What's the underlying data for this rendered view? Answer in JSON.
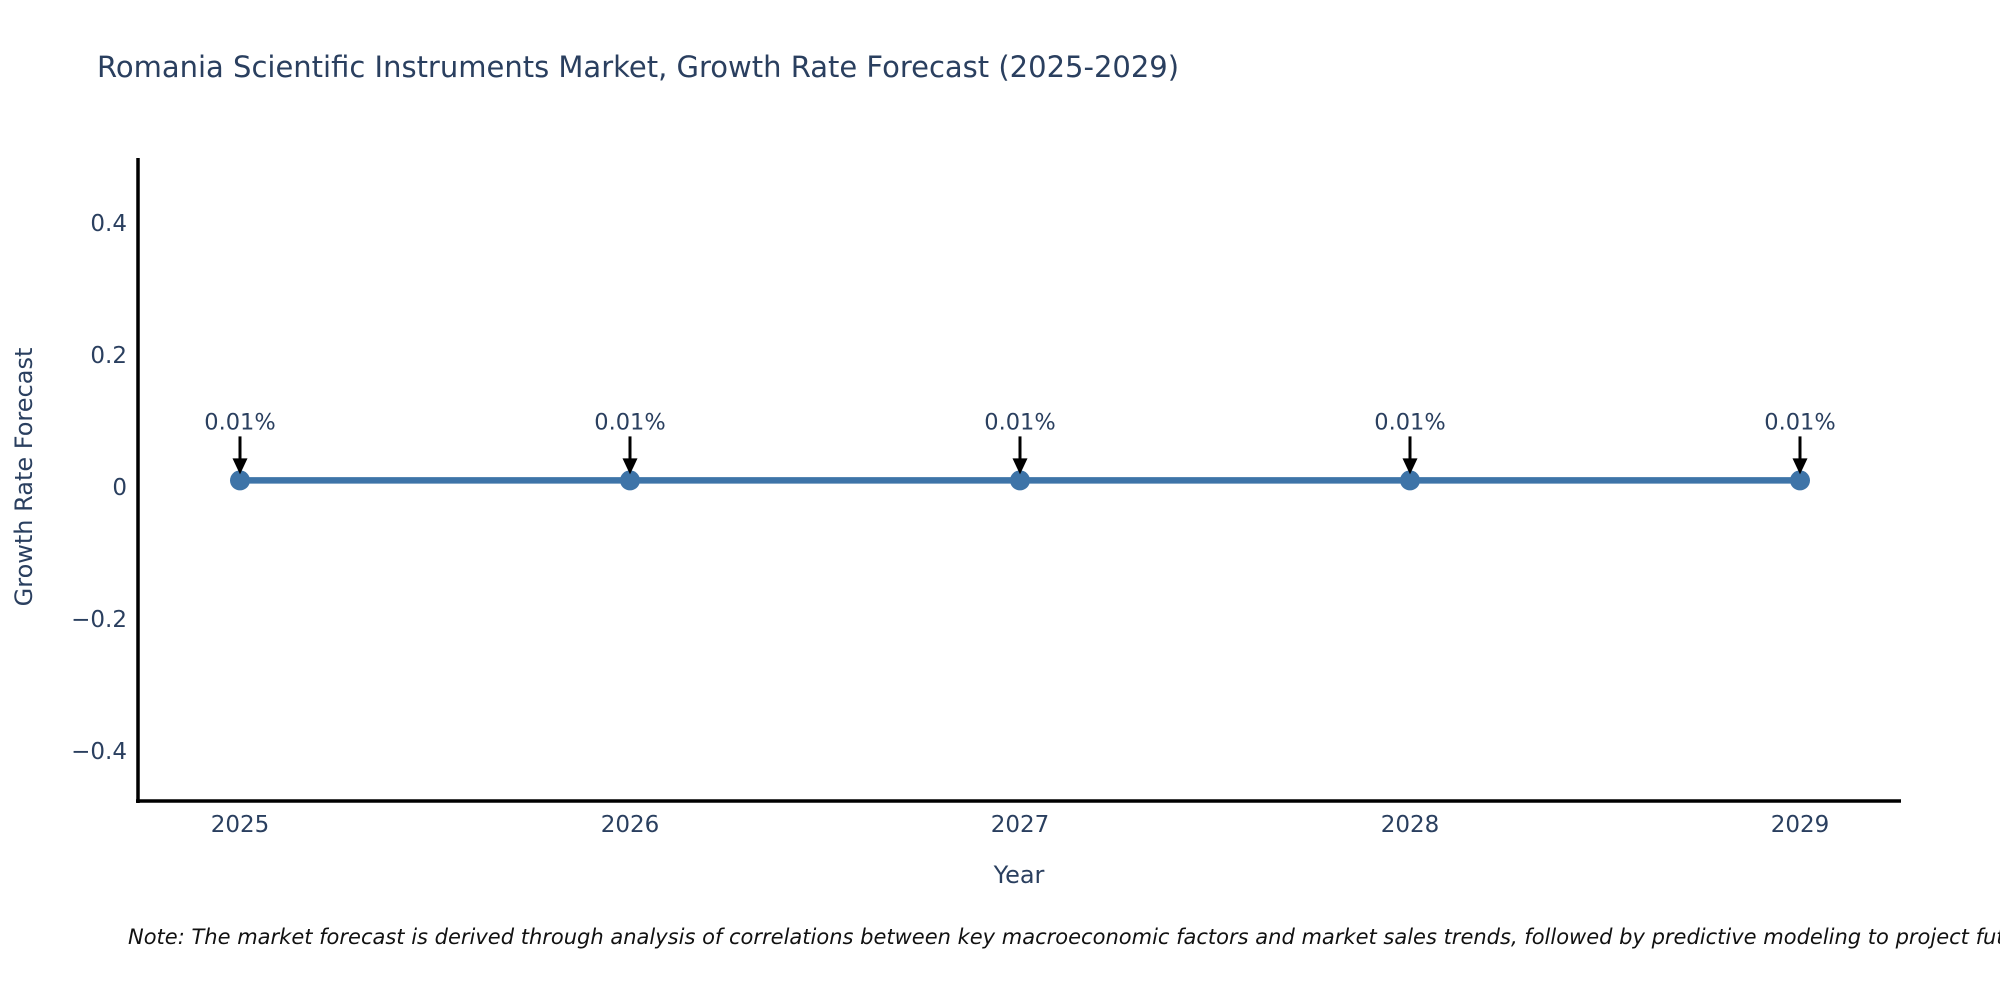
{
  "note": {
    "text": "Note: The market forecast is derived through analysis of correlations between key macroeconomic factors and market sales trends, followed by predictive modeling to project future sa"
  },
  "chart_data": {
    "type": "line",
    "title": "Romania Scientific Instruments Market, Growth Rate Forecast (2025-2029)",
    "xlabel": "Year",
    "ylabel": "Growth Rate Forecast",
    "x": [
      "2025",
      "2026",
      "2027",
      "2028",
      "2029"
    ],
    "values": [
      0.01,
      0.01,
      0.01,
      0.01,
      0.01
    ],
    "point_labels": [
      "0.01%",
      "0.01%",
      "0.01%",
      "0.01%",
      "0.01%"
    ],
    "yticks": {
      "values": [
        0.4,
        0.2,
        0,
        -0.2,
        -0.4
      ],
      "labels": [
        "0.4",
        "0.2",
        "0",
        "−0.2",
        "−0.4"
      ]
    },
    "ylim": [
      -0.5,
      0.5
    ],
    "grid": false,
    "legend": "none",
    "annotation_arrows": true,
    "colors": {
      "series": "#3e74a8",
      "axis": "#000000",
      "labels": "#2a3f5f",
      "arrow": "#000000",
      "note": "#111111"
    }
  }
}
